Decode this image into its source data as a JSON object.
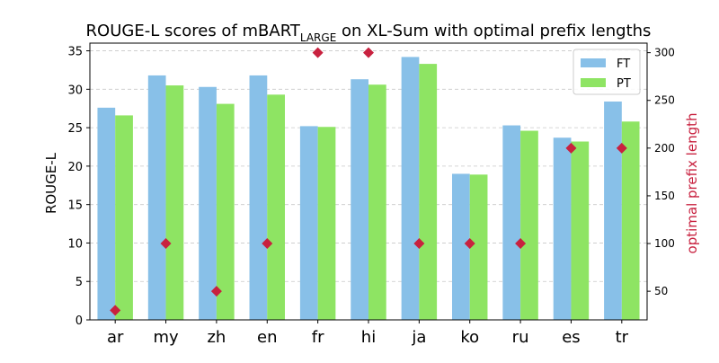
{
  "chart_data": {
    "type": "bar",
    "title": {
      "prefix": "ROUGE-L scores of mBART",
      "subscript": "LARGE",
      "suffix": " on XL-Sum with optimal prefix lengths"
    },
    "xlabel": "",
    "ylabel": "ROUGE-L",
    "y2label": "optimal prefix length",
    "categories": [
      "ar",
      "my",
      "zh",
      "en",
      "fr",
      "hi",
      "ja",
      "ko",
      "ru",
      "es",
      "tr"
    ],
    "series": [
      {
        "name": "FT",
        "color": "#88c0e8",
        "values": [
          27.6,
          31.8,
          30.3,
          31.8,
          25.2,
          31.3,
          34.2,
          19.0,
          25.3,
          23.7,
          28.4
        ]
      },
      {
        "name": "PT",
        "color": "#8ee463",
        "values": [
          26.6,
          30.5,
          28.1,
          29.3,
          25.1,
          30.6,
          33.3,
          18.9,
          24.6,
          23.2,
          25.8
        ]
      }
    ],
    "secondary_series": {
      "name": "optimal prefix length",
      "marker": "diamond",
      "color": "#c8213f",
      "values": [
        30,
        100,
        50,
        100,
        300,
        300,
        100,
        100,
        100,
        200,
        200
      ]
    },
    "ylim": [
      0,
      36
    ],
    "y_ticks": [
      0,
      5,
      10,
      15,
      20,
      25,
      30,
      35
    ],
    "y2lim": [
      20,
      310
    ],
    "y2_ticks": [
      50,
      100,
      150,
      200,
      250,
      300
    ],
    "grid": "horizontal dashed",
    "legend_position": "top-right"
  }
}
